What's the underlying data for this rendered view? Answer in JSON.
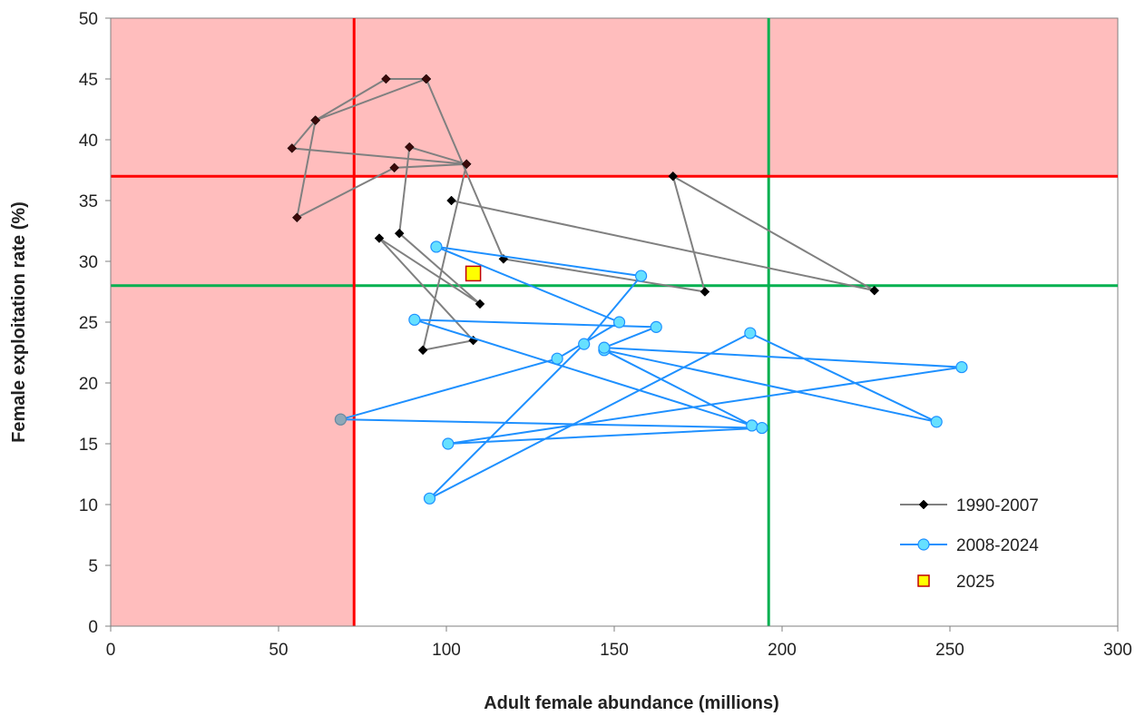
{
  "chart_data": {
    "type": "scatter",
    "title": "",
    "xlabel": "Adult female abundance (millions)",
    "ylabel": "Female exploitation rate (%)",
    "xlim": [
      0,
      300
    ],
    "ylim": [
      0,
      50
    ],
    "xticks": [
      0,
      50,
      100,
      150,
      200,
      250,
      300
    ],
    "yticks": [
      0,
      5,
      10,
      15,
      20,
      25,
      30,
      35,
      40,
      45,
      50
    ],
    "grid": false,
    "legend_position": "bottom-right",
    "reference_lines": {
      "limit": {
        "x": 72.5,
        "y": 37,
        "color": "#ff0000"
      },
      "target": {
        "x": 196,
        "y": 28,
        "color": "#00b050"
      }
    },
    "shaded_color": "#ffbdbd",
    "series": [
      {
        "name": "1990-2007",
        "marker": "diamond",
        "color": "#000000",
        "line_color": "#808080",
        "points": [
          [
            94,
            45
          ],
          [
            82,
            45
          ],
          [
            61,
            41.6
          ],
          [
            54,
            39.3
          ],
          [
            106,
            38
          ],
          [
            89,
            39.4
          ],
          [
            86,
            32.3
          ],
          [
            110,
            26.5
          ],
          [
            80,
            31.9
          ],
          [
            108,
            23.5
          ],
          [
            93,
            22.7
          ],
          [
            106,
            38
          ],
          [
            84.5,
            37.7
          ],
          [
            55.5,
            33.6
          ],
          [
            61,
            41.6
          ],
          [
            94,
            45
          ],
          [
            117,
            30.2
          ],
          [
            177,
            27.5
          ],
          [
            167.5,
            37
          ],
          [
            227.5,
            27.6
          ],
          [
            101.5,
            35
          ]
        ]
      },
      {
        "name": "2008-2024",
        "marker": "circle",
        "color": "#66e0ff",
        "line_color": "#1e90ff",
        "points": [
          [
            68.5,
            17
          ],
          [
            133,
            22
          ],
          [
            151.5,
            25
          ],
          [
            97,
            31.2
          ],
          [
            158,
            28.8
          ],
          [
            141,
            23.2
          ],
          [
            95,
            10.5
          ],
          [
            190.5,
            24.1
          ],
          [
            246,
            16.8
          ],
          [
            147,
            22.7
          ],
          [
            191,
            16.5
          ],
          [
            90.5,
            25.2
          ],
          [
            162.5,
            24.6
          ],
          [
            147,
            22.9
          ],
          [
            253.5,
            21.3
          ],
          [
            100.5,
            15
          ],
          [
            194,
            16.3
          ],
          [
            68.5,
            17
          ]
        ]
      },
      {
        "name": "2025",
        "marker": "square",
        "color": "#ffff00",
        "edge_color": "#c00000",
        "points": [
          [
            108,
            29
          ]
        ]
      }
    ]
  }
}
